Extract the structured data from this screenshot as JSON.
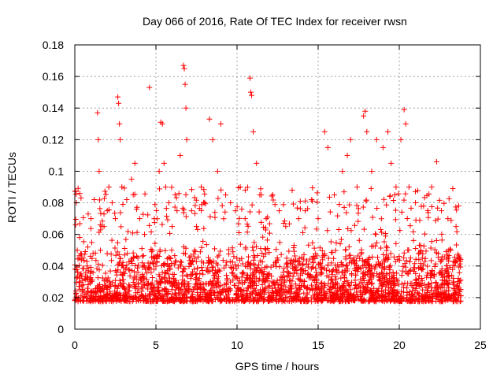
{
  "chart_data": {
    "type": "scatter",
    "title": "Day 066 of 2016, Rate Of TEC Index for receiver rwsn",
    "xlabel": "GPS time / hours",
    "ylabel": "ROTI / TECUs",
    "xlim": [
      0,
      25
    ],
    "ylim": [
      0,
      0.18
    ],
    "x_ticks": [
      "0",
      "5",
      "10",
      "15",
      "20",
      "25"
    ],
    "y_ticks": [
      "0",
      "0.02",
      "0.04",
      "0.06",
      "0.08",
      "0.1",
      "0.12",
      "0.14",
      "0.16",
      "0.18"
    ],
    "grid": true,
    "marker": "+",
    "series_color": "#ff0000",
    "x_range_of_data": [
      0,
      23.8
    ],
    "typical_band": [
      0.01,
      0.06
    ],
    "series": [
      {
        "points": [
          [
            0.05,
            0.066
          ],
          [
            0.1,
            0.08
          ],
          [
            0.15,
            0.05
          ],
          [
            0.3,
            0.058
          ],
          [
            0.5,
            0.045
          ],
          [
            0.8,
            0.052
          ],
          [
            1.0,
            0.07
          ],
          [
            1.2,
            0.082
          ],
          [
            1.4,
            0.137
          ],
          [
            1.45,
            0.12
          ],
          [
            1.5,
            0.1
          ],
          [
            1.8,
            0.065
          ],
          [
            2.0,
            0.075
          ],
          [
            2.1,
            0.09
          ],
          [
            2.3,
            0.08
          ],
          [
            2.5,
            0.07
          ],
          [
            2.65,
            0.147
          ],
          [
            2.7,
            0.143
          ],
          [
            2.75,
            0.13
          ],
          [
            2.8,
            0.12
          ],
          [
            2.9,
            0.09
          ],
          [
            3.2,
            0.082
          ],
          [
            3.5,
            0.095
          ],
          [
            3.7,
            0.105
          ],
          [
            4.0,
            0.07
          ],
          [
            4.3,
            0.06
          ],
          [
            4.6,
            0.153
          ],
          [
            4.9,
            0.07
          ],
          [
            5.2,
            0.1
          ],
          [
            5.3,
            0.131
          ],
          [
            5.4,
            0.13
          ],
          [
            5.5,
            0.105
          ],
          [
            5.6,
            0.09
          ],
          [
            5.8,
            0.08
          ],
          [
            6.0,
            0.065
          ],
          [
            6.3,
            0.075
          ],
          [
            6.5,
            0.11
          ],
          [
            6.7,
            0.167
          ],
          [
            6.75,
            0.165
          ],
          [
            6.8,
            0.155
          ],
          [
            6.85,
            0.14
          ],
          [
            6.9,
            0.12
          ],
          [
            7.2,
            0.075
          ],
          [
            7.5,
            0.065
          ],
          [
            7.8,
            0.09
          ],
          [
            8.0,
            0.08
          ],
          [
            8.3,
            0.133
          ],
          [
            8.5,
            0.12
          ],
          [
            8.8,
            0.1
          ],
          [
            9.0,
            0.13
          ],
          [
            9.3,
            0.085
          ],
          [
            9.6,
            0.08
          ],
          [
            9.9,
            0.075
          ],
          [
            10.2,
            0.09
          ],
          [
            10.5,
            0.07
          ],
          [
            10.8,
            0.159
          ],
          [
            10.85,
            0.15
          ],
          [
            10.9,
            0.148
          ],
          [
            11.0,
            0.125
          ],
          [
            11.2,
            0.105
          ],
          [
            11.5,
            0.085
          ],
          [
            11.8,
            0.07
          ],
          [
            12.2,
            0.085
          ],
          [
            12.6,
            0.075
          ],
          [
            13.0,
            0.065
          ],
          [
            13.4,
            0.088
          ],
          [
            13.8,
            0.07
          ],
          [
            14.2,
            0.075
          ],
          [
            14.6,
            0.082
          ],
          [
            15.0,
            0.07
          ],
          [
            15.4,
            0.125
          ],
          [
            15.6,
            0.115
          ],
          [
            16.0,
            0.085
          ],
          [
            16.5,
            0.1
          ],
          [
            16.8,
            0.11
          ],
          [
            17.0,
            0.12
          ],
          [
            17.4,
            0.09
          ],
          [
            17.8,
            0.135
          ],
          [
            17.9,
            0.138
          ],
          [
            18.0,
            0.125
          ],
          [
            18.3,
            0.1
          ],
          [
            18.6,
            0.12
          ],
          [
            19.0,
            0.115
          ],
          [
            19.3,
            0.125
          ],
          [
            19.5,
            0.105
          ],
          [
            19.8,
            0.09
          ],
          [
            20.1,
            0.12
          ],
          [
            20.3,
            0.139
          ],
          [
            20.4,
            0.13
          ],
          [
            20.6,
            0.09
          ],
          [
            21.0,
            0.08
          ],
          [
            21.5,
            0.078
          ],
          [
            22.0,
            0.09
          ],
          [
            22.3,
            0.106
          ],
          [
            22.6,
            0.075
          ],
          [
            23.0,
            0.07
          ],
          [
            23.3,
            0.089
          ],
          [
            23.5,
            0.065
          ],
          [
            23.7,
            0.045
          ]
        ]
      }
    ]
  }
}
